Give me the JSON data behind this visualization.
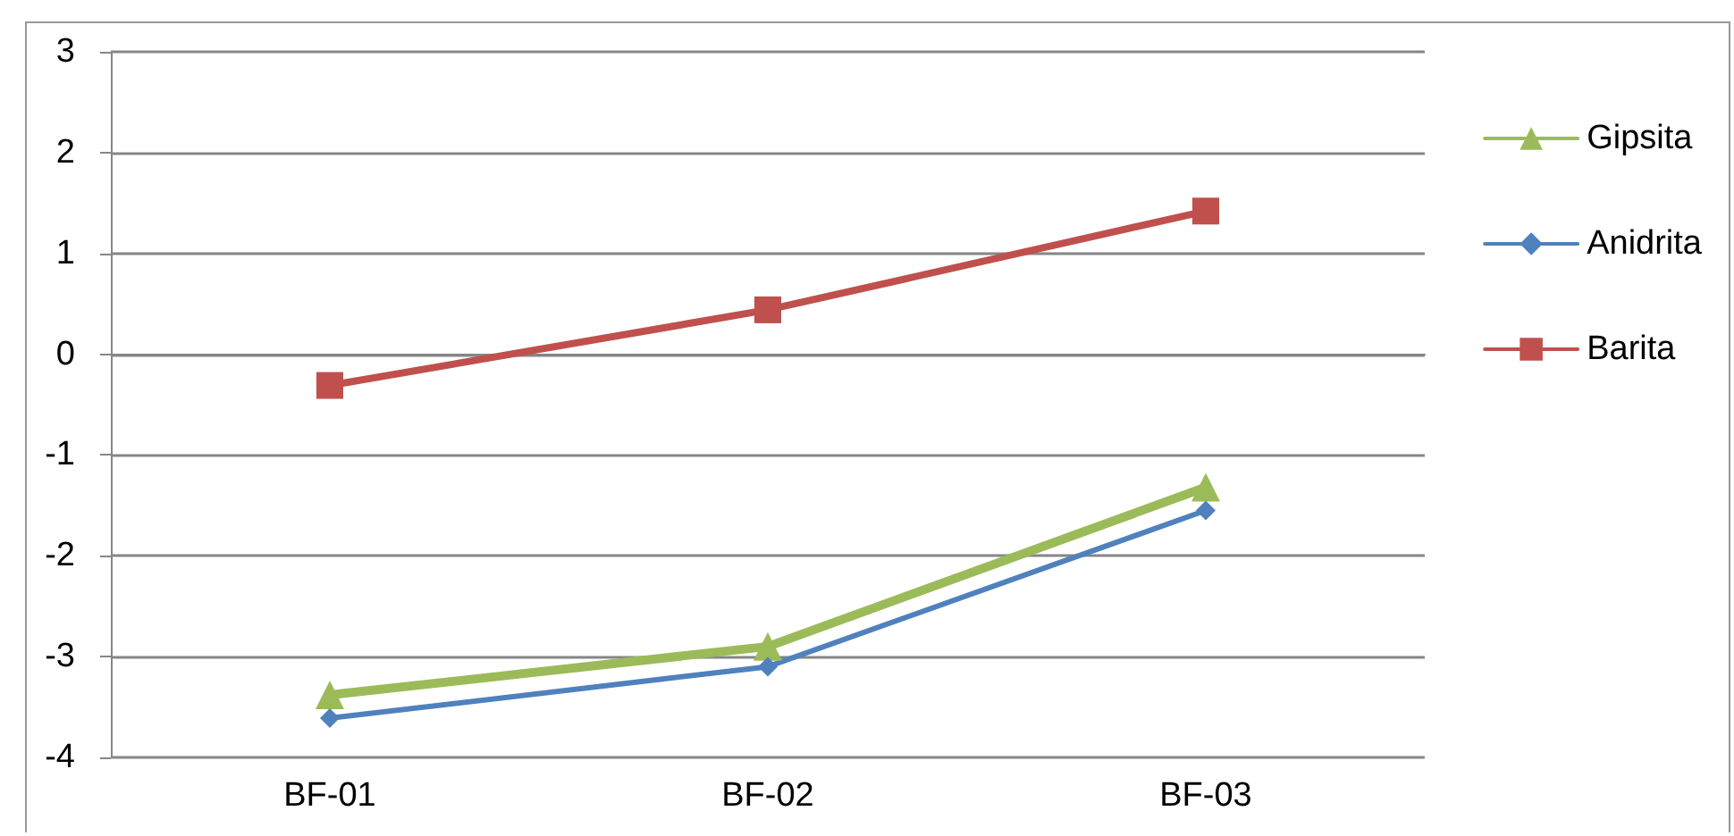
{
  "chart_data": {
    "type": "line",
    "categories": [
      "BF-01",
      "BF-02",
      "BF-03"
    ],
    "series": [
      {
        "name": "Gipsita",
        "color": "#9bbb59",
        "marker": "triangle",
        "values": [
          -3.38,
          -2.9,
          -1.32
        ]
      },
      {
        "name": "Anidrita",
        "color": "#4f81bd",
        "marker": "diamond",
        "values": [
          -3.61,
          -3.1,
          -1.55
        ]
      },
      {
        "name": "Barita",
        "color": "#c0504d",
        "marker": "square",
        "values": [
          -0.31,
          0.44,
          1.42
        ]
      }
    ],
    "ylim": [
      -4,
      3
    ],
    "yticks": [
      -4,
      -3,
      -2,
      -1,
      0,
      1,
      2,
      3
    ],
    "grid": "y",
    "legend": "right"
  }
}
